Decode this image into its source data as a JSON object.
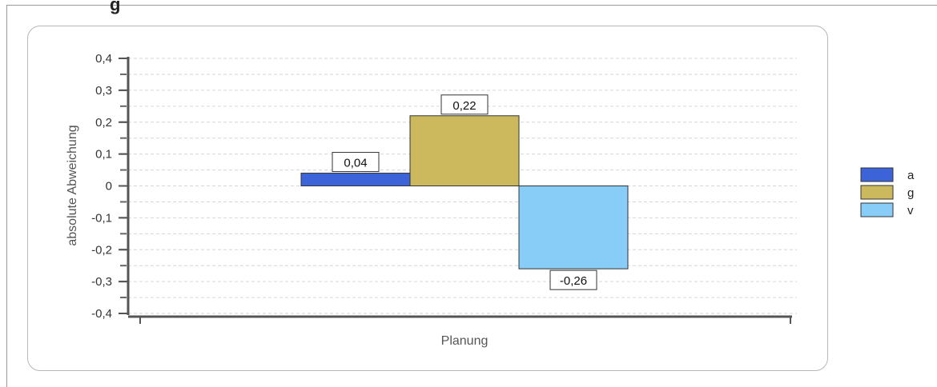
{
  "header": {
    "title_fragment": "g"
  },
  "chart_data": {
    "type": "bar",
    "categories": [
      "Planung"
    ],
    "series": [
      {
        "name": "a",
        "values": [
          0.04
        ],
        "label": "0,04",
        "color": "#3d63d8"
      },
      {
        "name": "g",
        "values": [
          0.22
        ],
        "label": "0,22",
        "color": "#ccb95e"
      },
      {
        "name": "v",
        "values": [
          -0.26
        ],
        "label": "-0,26",
        "color": "#87cdf7"
      }
    ],
    "ylabel": "absolute Abweichung",
    "xlabel": "",
    "ylim": [
      -0.4,
      0.4
    ],
    "yticks": [
      {
        "value": 0.4,
        "label": "0,4"
      },
      {
        "value": 0.3,
        "label": "0,3"
      },
      {
        "value": 0.2,
        "label": "0,2"
      },
      {
        "value": 0.1,
        "label": "0,1"
      },
      {
        "value": 0,
        "label": "0"
      },
      {
        "value": -0.1,
        "label": "-0,1"
      },
      {
        "value": -0.2,
        "label": "-0,2"
      },
      {
        "value": -0.3,
        "label": "-0,3"
      },
      {
        "value": -0.4,
        "label": "-0,4"
      }
    ],
    "grid": true,
    "legend_position": "right"
  }
}
